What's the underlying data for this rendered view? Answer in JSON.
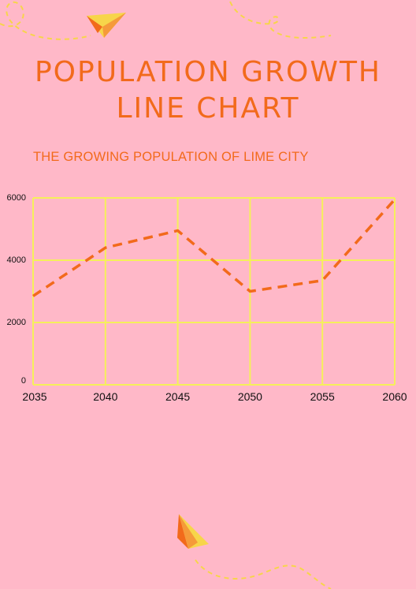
{
  "title": {
    "line1": "POPULATION GROWTH",
    "line2": "LINE CHART"
  },
  "subtitle": "THE GROWING POPULATION OF LIME CITY",
  "colors": {
    "background": "#ffb8c8",
    "title": "#f26a1b",
    "grid": "#f5f05a",
    "line": "#f26a1b",
    "decor": "#f7d54a"
  },
  "decor": {
    "top_icon": "paper-plane-icon",
    "bottom_icon": "paper-plane-icon"
  },
  "chart_data": {
    "type": "line",
    "title": "",
    "xlabel": "",
    "ylabel": "",
    "x": [
      2035,
      2040,
      2045,
      2050,
      2055,
      2060
    ],
    "xlim": [
      2035,
      2060
    ],
    "ylim": [
      0,
      6000
    ],
    "yticks": [
      0,
      2000,
      4000,
      6000
    ],
    "xticks": [
      2035,
      2040,
      2045,
      2050,
      2055,
      2060
    ],
    "grid": true,
    "line_style": "dashed",
    "series": [
      {
        "values": [
          2850,
          4400,
          4950,
          3000,
          3350,
          5950
        ]
      }
    ]
  }
}
